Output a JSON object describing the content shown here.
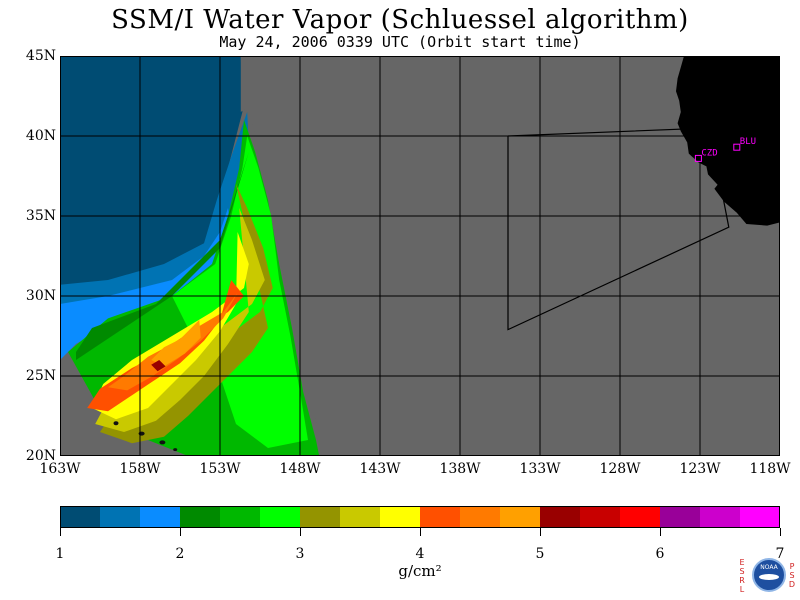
{
  "title": "SSM/I Water Vapor (Schluessel algorithm)",
  "subtitle": "May 24, 2006  0339 UTC  (Orbit start time)",
  "map": {
    "lat_labels": [
      "45N",
      "40N",
      "35N",
      "30N",
      "25N",
      "20N"
    ],
    "lon_labels": [
      "163W",
      "158W",
      "153W",
      "148W",
      "143W",
      "138W",
      "133W",
      "128W",
      "123W",
      "118W"
    ],
    "stations": [
      {
        "id": "BLU",
        "lon": -120.7,
        "lat": 39.3
      },
      {
        "id": "CZD",
        "lon": -123.1,
        "lat": 38.6
      }
    ],
    "colors": {
      "no_data": "#666666",
      "land": "#000000",
      "grid": "#000000",
      "station": "#ff00ff"
    }
  },
  "colorbar": {
    "colors": [
      "#004c73",
      "#0073b3",
      "#0a8cff",
      "#008a00",
      "#00b800",
      "#00ff00",
      "#949400",
      "#c9c900",
      "#ffff00",
      "#ff5000",
      "#ff7a00",
      "#ffa000",
      "#990000",
      "#c80000",
      "#ff0000",
      "#990099",
      "#cc00cc",
      "#ff00ff"
    ],
    "ticks": [
      "1",
      "2",
      "3",
      "4",
      "5",
      "6",
      "7"
    ],
    "units": "g/cm²"
  },
  "logo": {
    "left_letters": [
      "E",
      "S",
      "R",
      "L"
    ],
    "right_letters": [
      "P",
      "S",
      "D"
    ],
    "name": "NOAA"
  }
}
